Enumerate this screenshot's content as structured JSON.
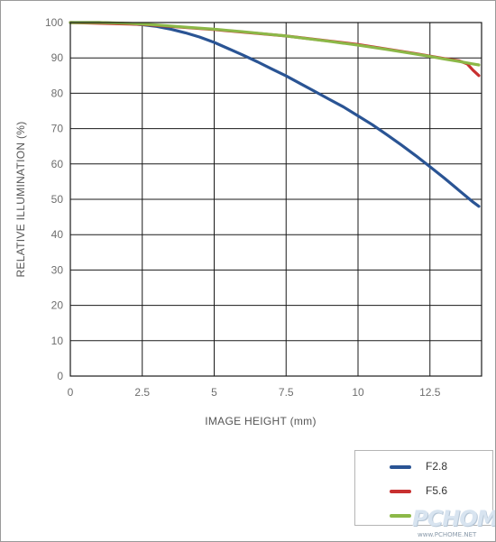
{
  "chart_data": {
    "type": "line",
    "title": "",
    "xlabel": "IMAGE HEIGHT (mm)",
    "ylabel": "RELATIVE ILLUMINATION (%)",
    "xlim": [
      0,
      14.2
    ],
    "ylim": [
      0,
      100
    ],
    "x_ticks": [
      "0",
      "2.5",
      "5",
      "7.5",
      "10",
      "12.5"
    ],
    "y_ticks": [
      "0",
      "10",
      "20",
      "30",
      "40",
      "50",
      "60",
      "70",
      "80",
      "90",
      "100"
    ],
    "grid": true,
    "legend_position": "bottom-right",
    "series": [
      {
        "name": "F2.8",
        "color": "#2a5494",
        "x": [
          0,
          1,
          2,
          2.5,
          3,
          3.5,
          4,
          4.5,
          5,
          5.5,
          6,
          6.5,
          7,
          7.5,
          8,
          8.5,
          9,
          9.5,
          10,
          10.5,
          11,
          11.5,
          12,
          12.5,
          13,
          13.5,
          14,
          14.2
        ],
        "y": [
          100,
          100,
          99.7,
          99.4,
          98.9,
          98.1,
          97.1,
          95.9,
          94.4,
          92.6,
          90.8,
          88.9,
          86.9,
          84.9,
          82.7,
          80.5,
          78.3,
          76.1,
          73.6,
          71.1,
          68.3,
          65.4,
          62.4,
          59.2,
          56.0,
          52.6,
          49.2,
          48.0
        ]
      },
      {
        "name": "F5.6",
        "color": "#c83030",
        "x": [
          0,
          2.5,
          5,
          7.5,
          10,
          12,
          13,
          13.5,
          13.8,
          14,
          14.2
        ],
        "y": [
          100,
          99.5,
          98,
          96.2,
          93.8,
          91.2,
          89.8,
          89.2,
          88.3,
          86.5,
          85.0
        ]
      },
      {
        "name": "",
        "color": "#8cb848",
        "x": [
          0,
          1,
          2,
          2.5,
          3,
          4,
          5,
          6,
          7,
          7.5,
          8,
          9,
          10,
          11,
          12,
          12.5,
          13,
          13.5,
          14,
          14.2
        ],
        "y": [
          100,
          100,
          99.8,
          99.6,
          99.3,
          98.7,
          98.1,
          97.4,
          96.6,
          96.2,
          95.7,
          94.7,
          93.6,
          92.4,
          91.1,
          90.4,
          89.7,
          89.0,
          88.3,
          88.0
        ]
      }
    ]
  },
  "watermark": {
    "logo_text": "PCHOME",
    "url_text": "www.PCHOME.NET"
  }
}
